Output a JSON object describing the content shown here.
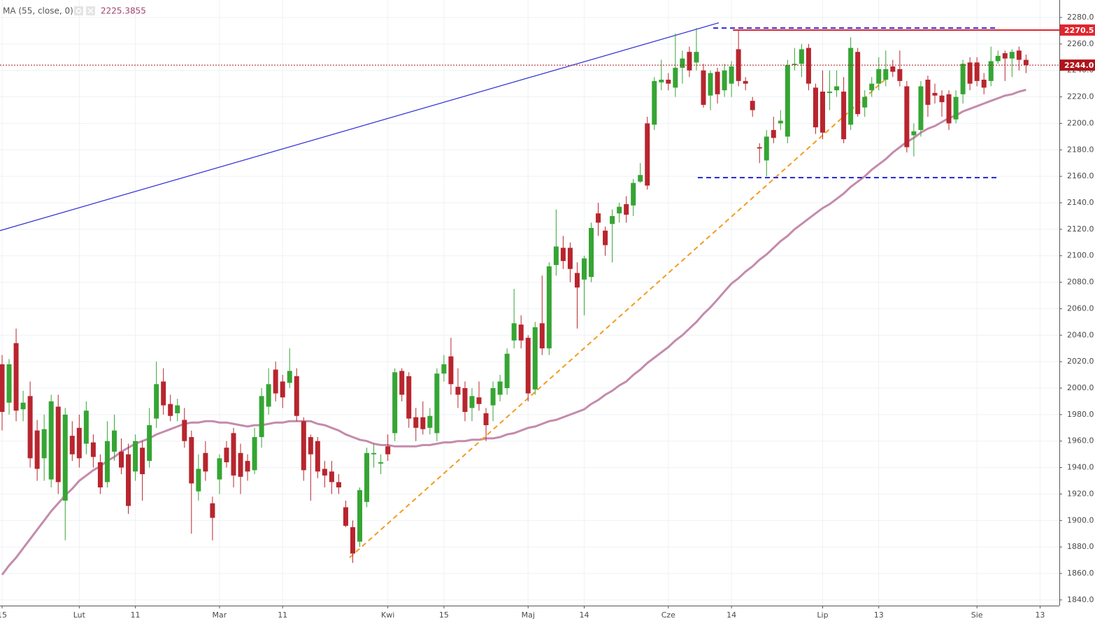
{
  "chart_data": {
    "type": "candlestick",
    "up_color": "#35a534",
    "down_color": "#b8252e",
    "grid": true,
    "ylim": [
      1835.7,
      2293.2
    ],
    "yticks": [
      {
        "value": 1840,
        "label": "1840.0"
      },
      {
        "value": 1860,
        "label": "1860.0"
      },
      {
        "value": 1880,
        "label": "1880.0"
      },
      {
        "value": 1900,
        "label": "1900.0"
      },
      {
        "value": 1920,
        "label": "1920.0"
      },
      {
        "value": 1940,
        "label": "1940.0"
      },
      {
        "value": 1960,
        "label": "1960.0"
      },
      {
        "value": 1980,
        "label": "1980.0"
      },
      {
        "value": 2000,
        "label": "2000.0"
      },
      {
        "value": 2020,
        "label": "2020.0"
      },
      {
        "value": 2040,
        "label": "2040.0"
      },
      {
        "value": 2060,
        "label": "2060.0"
      },
      {
        "value": 2080,
        "label": "2080.0"
      },
      {
        "value": 2100,
        "label": "2100.0"
      },
      {
        "value": 2120,
        "label": "2120.0"
      },
      {
        "value": 2140,
        "label": "2140.0"
      },
      {
        "value": 2160,
        "label": "2160.0"
      },
      {
        "value": 2180,
        "label": "2180.0"
      },
      {
        "value": 2200,
        "label": "2200.0"
      },
      {
        "value": 2220,
        "label": "2220.0"
      },
      {
        "value": 2240,
        "label": "2240.0"
      },
      {
        "value": 2260,
        "label": "2260.0"
      },
      {
        "value": 2280,
        "label": "2280.0"
      }
    ],
    "categories": [
      "15",
      null,
      null,
      null,
      null,
      null,
      null,
      null,
      null,
      null,
      null,
      "Lut",
      null,
      null,
      null,
      null,
      null,
      null,
      null,
      "11",
      null,
      null,
      null,
      null,
      null,
      null,
      null,
      null,
      null,
      null,
      null,
      "Mar",
      null,
      null,
      null,
      null,
      null,
      null,
      null,
      null,
      "11",
      null,
      null,
      null,
      null,
      null,
      null,
      null,
      null,
      null,
      null,
      null,
      null,
      null,
      null,
      "Kwi",
      null,
      null,
      null,
      null,
      null,
      null,
      null,
      "15",
      null,
      null,
      null,
      null,
      null,
      null,
      null,
      null,
      null,
      null,
      null,
      "Maj",
      null,
      null,
      null,
      null,
      null,
      null,
      null,
      "14",
      null,
      null,
      null,
      null,
      null,
      null,
      null,
      null,
      null,
      null,
      null,
      "Cze",
      null,
      null,
      null,
      null,
      null,
      null,
      null,
      null,
      "14",
      null,
      null,
      null,
      null,
      null,
      null,
      null,
      null,
      null,
      null,
      null,
      null,
      "Lip",
      null,
      null,
      null,
      null,
      null,
      null,
      null,
      "13",
      null,
      null,
      null,
      null,
      null,
      null,
      null,
      null,
      null,
      null,
      null,
      null,
      null,
      "Sie",
      null,
      null,
      null,
      null,
      null,
      null,
      null,
      null,
      "13",
      null
    ],
    "open": [
      2018,
      1989,
      2034,
      1984,
      1994,
      1968,
      1947,
      1931,
      1986,
      1915,
      1964,
      1970,
      1958,
      1959,
      1944,
      1929,
      1952,
      1952,
      1950,
      1937,
      1955,
      1945,
      1977,
      2005,
      1988,
      1981,
      1976,
      1963,
      1922,
      1951,
      1913,
      1931,
      1955,
      1966,
      1951,
      1945,
      1938,
      1963,
      1986,
      2014,
      2005,
      2004,
      2009,
      1975,
      1963,
      1960,
      1939,
      1937,
      1929,
      1910,
      1895,
      1884,
      1914,
      1950,
      1943,
      1956,
      1966,
      2013,
      2009,
      1978,
      1978,
      1970,
      1966,
      2011,
      2024,
      2001,
      2000,
      1985,
      1993,
      1981,
      1987,
      1995,
      2000,
      2036,
      2048,
      2038,
      1999,
      2049,
      2030,
      2093,
      2106,
      2106,
      2087,
      2082,
      2084,
      2132,
      2119,
      2124,
      2132,
      2139,
      2138,
      2156,
      2200,
      2199,
      2231,
      2233,
      2227,
      2242,
      2254,
      2246,
      2240,
      2221,
      2239,
      2225,
      2230,
      2256,
      2232,
      2217,
      2182,
      2172,
      2195,
      2200,
      2190,
      2244,
      2245,
      2257,
      2227,
      2224,
      2223,
      2225,
      2224,
      2199,
      2254,
      2212,
      2225,
      2230,
      2233,
      2243,
      2241,
      2228,
      2191,
      2195,
      2233,
      2223,
      2221,
      2222,
      2203,
      2222,
      2246,
      2246,
      2233,
      2232,
      2247,
      2253,
      2249,
      2255,
      2248,
      null,
      null,
      null
    ],
    "high": [
      2025,
      2022,
      2045,
      1998,
      2005,
      1976,
      1980,
      1995,
      1995,
      1985,
      1975,
      1980,
      1990,
      1965,
      1950,
      1975,
      1980,
      1962,
      1958,
      1965,
      1960,
      1985,
      2020,
      2015,
      1995,
      1992,
      1985,
      1968,
      1950,
      1960,
      1918,
      1950,
      1960,
      1970,
      1958,
      1950,
      1970,
      2000,
      2015,
      2020,
      2010,
      2030,
      2015,
      1978,
      1965,
      1963,
      1945,
      1945,
      1935,
      1915,
      1900,
      1925,
      1955,
      1958,
      1950,
      1965,
      2015,
      2015,
      2012,
      1985,
      1990,
      1985,
      2015,
      2025,
      2038,
      2015,
      2005,
      2000,
      2005,
      1985,
      2005,
      2010,
      2030,
      2075,
      2055,
      2040,
      2050,
      2085,
      2095,
      2135,
      2115,
      2110,
      2095,
      2100,
      2125,
      2140,
      2122,
      2135,
      2140,
      2145,
      2158,
      2170,
      2205,
      2235,
      2248,
      2238,
      2268,
      2255,
      2258,
      2272,
      2245,
      2240,
      2242,
      2245,
      2247,
      2270,
      2235,
      2220,
      2185,
      2195,
      2205,
      2210,
      2248,
      2257,
      2260,
      2260,
      2230,
      2240,
      2240,
      2240,
      2235,
      2265,
      2257,
      2225,
      2235,
      2250,
      2255,
      2248,
      2255,
      2232,
      2200,
      2232,
      2236,
      2230,
      2225,
      2225,
      2225,
      2248,
      2250,
      2250,
      2238,
      2258,
      2255,
      2255,
      2256,
      2258,
      2252,
      null,
      null,
      null
    ],
    "low": [
      1968,
      1980,
      1975,
      1975,
      1940,
      1930,
      1930,
      1925,
      1920,
      1885,
      1945,
      1940,
      1950,
      1940,
      1920,
      1925,
      1945,
      1935,
      1905,
      1930,
      1915,
      1940,
      1970,
      1980,
      1975,
      1975,
      1955,
      1890,
      1915,
      1930,
      1885,
      1920,
      1940,
      1925,
      1920,
      1930,
      1935,
      1955,
      1980,
      1990,
      1985,
      2000,
      1975,
      1930,
      1915,
      1932,
      1925,
      1920,
      1920,
      1895,
      1868,
      1880,
      1910,
      1940,
      1935,
      1945,
      1960,
      1990,
      1970,
      1960,
      1965,
      1965,
      1960,
      2005,
      1995,
      1985,
      1975,
      1975,
      1983,
      1960,
      1975,
      1990,
      1995,
      2030,
      2030,
      1990,
      1995,
      2025,
      2025,
      2085,
      2090,
      2080,
      2045,
      2055,
      2080,
      2115,
      2100,
      2095,
      2125,
      2125,
      2130,
      2155,
      2150,
      2195,
      2225,
      2225,
      2220,
      2230,
      2235,
      2240,
      2212,
      2210,
      2215,
      2220,
      2220,
      2228,
      2225,
      2205,
      2170,
      2160,
      2185,
      2195,
      2185,
      2240,
      2235,
      2225,
      2192,
      2188,
      2210,
      2220,
      2185,
      2195,
      2205,
      2205,
      2220,
      2225,
      2228,
      2235,
      2228,
      2178,
      2175,
      2190,
      2205,
      2215,
      2205,
      2195,
      2200,
      2215,
      2225,
      2228,
      2222,
      2228,
      2245,
      2232,
      2235,
      2240,
      2238,
      null,
      null,
      null
    ],
    "close": [
      1982,
      2018,
      1983,
      1989,
      1947,
      1939,
      1969,
      1990,
      1929,
      1980,
      1950,
      1947,
      1983,
      1948,
      1925,
      1960,
      1968,
      1940,
      1911,
      1960,
      1935,
      1972,
      2003,
      1987,
      1979,
      1987,
      1960,
      1928,
      1939,
      1937,
      1902,
      1947,
      1944,
      1934,
      1933,
      1937,
      1963,
      1994,
      2003,
      1996,
      1993,
      2013,
      1979,
      1938,
      1950,
      1937,
      1934,
      1929,
      1925,
      1896,
      1875,
      1923,
      1951,
      1951,
      1944,
      1950,
      2012,
      1995,
      1977,
      1970,
      1969,
      1979,
      2011,
      2018,
      2003,
      1995,
      1982,
      1994,
      1988,
      1972,
      2000,
      2005,
      2026,
      2049,
      2036,
      1996,
      2046,
      2030,
      2092,
      2107,
      2096,
      2090,
      2076,
      2098,
      2121,
      2125,
      2108,
      2130,
      2137,
      2131,
      2155,
      2161,
      2153,
      2232,
      2233,
      2230,
      2242,
      2249,
      2240,
      2254,
      2214,
      2238,
      2222,
      2240,
      2243,
      2232,
      2230,
      2210,
      2181,
      2190,
      2189,
      2202,
      2244,
      2245,
      2256,
      2230,
      2197,
      2193,
      2224,
      2228,
      2188,
      2257,
      2207,
      2220,
      2230,
      2241,
      2241,
      2239,
      2232,
      2182,
      2194,
      2228,
      2214,
      2221,
      2216,
      2200,
      2220,
      2245,
      2230,
      2232,
      2227,
      2247,
      2251,
      2249,
      2254,
      2248,
      2244,
      null,
      null,
      null
    ],
    "ma": {
      "name": "MA (55, close, 0)",
      "color": "#c48bab",
      "values": [
        1859,
        1866,
        1872,
        1879,
        1886,
        1893,
        1900,
        1907,
        1913,
        1919,
        1924,
        1930,
        1934,
        1938,
        1941,
        1945,
        1948,
        1952,
        1955,
        1958,
        1960,
        1962,
        1965,
        1967,
        1969,
        1971,
        1973,
        1974,
        1974,
        1975,
        1975,
        1974,
        1974,
        1973,
        1972,
        1971,
        1972,
        1972,
        1973,
        1974,
        1974,
        1975,
        1975,
        1975,
        1975,
        1973,
        1972,
        1970,
        1968,
        1965,
        1963,
        1961,
        1960,
        1958,
        1957,
        1957,
        1956,
        1956,
        1956,
        1956,
        1957,
        1957,
        1958,
        1959,
        1959,
        1960,
        1960,
        1961,
        1961,
        1962,
        1962,
        1963,
        1965,
        1966,
        1968,
        1970,
        1971,
        1973,
        1975,
        1976,
        1978,
        1980,
        1982,
        1984,
        1988,
        1991,
        1995,
        1998,
        2002,
        2005,
        2010,
        2014,
        2019,
        2023,
        2027,
        2031,
        2036,
        2040,
        2045,
        2050,
        2056,
        2061,
        2067,
        2073,
        2079,
        2083,
        2088,
        2092,
        2097,
        2101,
        2106,
        2111,
        2115,
        2120,
        2124,
        2128,
        2132,
        2136,
        2139,
        2143,
        2147,
        2152,
        2156,
        2160,
        2165,
        2169,
        2173,
        2178,
        2182,
        2186,
        2189,
        2193,
        2196,
        2198,
        2201,
        2204,
        2206,
        2209,
        2211,
        2213,
        2215,
        2217,
        2219,
        2221,
        2222,
        2224,
        2225.3855,
        null,
        null,
        null
      ]
    },
    "drawings": [
      {
        "color": "#2b2bd6",
        "style": "solid",
        "x": [
          -0.3,
          102.2
        ],
        "values": [
          2119,
          2276
        ]
      },
      {
        "color": "#f39c1f",
        "style": "dashed",
        "x": [
          49.55,
          126.3
        ],
        "values": [
          1872,
          2235
        ]
      },
      {
        "color": "#2b2bd6",
        "style": "dashed",
        "x": [
          101.4,
          142.1
        ],
        "values": [
          2272,
          2272
        ]
      },
      {
        "color": "#2b2bd6",
        "style": "dashed",
        "x": [
          99.2,
          142.1
        ],
        "values": [
          2159,
          2159
        ]
      }
    ],
    "price_lines": [
      {
        "value": 2270.5,
        "label": "2270.5",
        "color": "#e0262f",
        "style": "solid",
        "start": 104.2
      },
      {
        "value": 2244,
        "label": "2244.0",
        "color": "#b0141c",
        "style": "dotted",
        "start": -0.3
      }
    ]
  }
}
